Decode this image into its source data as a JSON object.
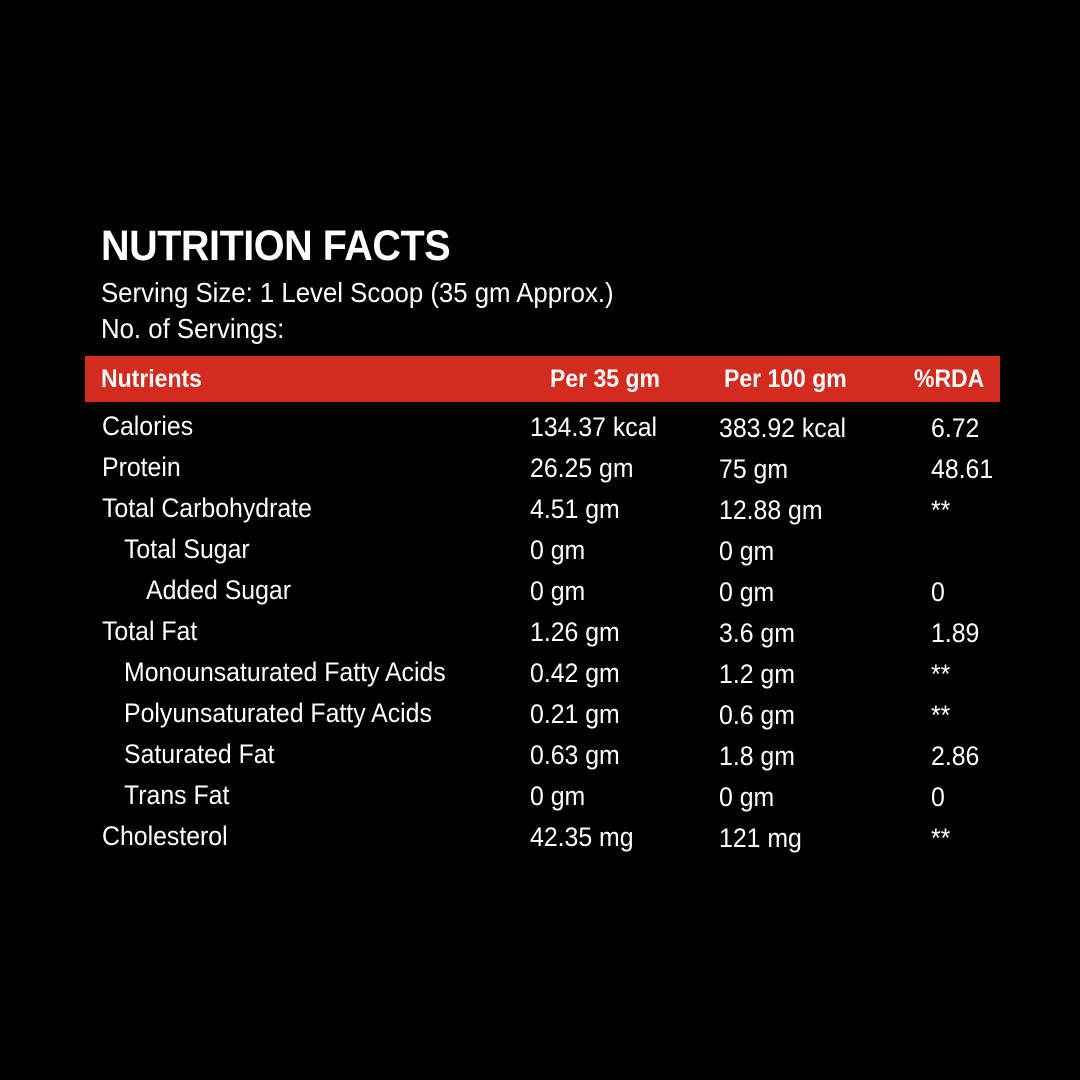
{
  "title": "NUTRITION FACTS",
  "serving_size": "Serving Size: 1 Level Scoop (35 gm Approx.)",
  "servings": "No. of Servings:",
  "colors": {
    "background": "#000000",
    "header_bar": "#d52b1e",
    "text": "#ffffff"
  },
  "table": {
    "headers": [
      "Nutrients",
      "Per 35 gm",
      "Per 100 gm",
      "%RDA"
    ],
    "rows": [
      {
        "name": "Calories",
        "indent": 0,
        "per35": "134.37 kcal",
        "per100": "383.92 kcal",
        "rda": "6.72"
      },
      {
        "name": "Protein",
        "indent": 0,
        "per35": "26.25 gm",
        "per100": "75 gm",
        "rda": "48.61"
      },
      {
        "name": "Total Carbohydrate",
        "indent": 0,
        "per35": "4.51 gm",
        "per100": "12.88 gm",
        "rda": "**"
      },
      {
        "name": "Total Sugar",
        "indent": 1,
        "per35": "0 gm",
        "per100": "0 gm",
        "rda": ""
      },
      {
        "name": "Added Sugar",
        "indent": 2,
        "per35": "0 gm",
        "per100": "0 gm",
        "rda": "0"
      },
      {
        "name": "Total Fat",
        "indent": 0,
        "per35": "1.26 gm",
        "per100": "3.6 gm",
        "rda": "1.89"
      },
      {
        "name": "Monounsaturated Fatty Acids",
        "indent": 1,
        "per35": "0.42 gm",
        "per100": "1.2 gm",
        "rda": "**"
      },
      {
        "name": "Polyunsaturated Fatty Acids",
        "indent": 1,
        "per35": "0.21 gm",
        "per100": "0.6 gm",
        "rda": "**"
      },
      {
        "name": "Saturated Fat",
        "indent": 1,
        "per35": "0.63 gm",
        "per100": "1.8 gm",
        "rda": "2.86"
      },
      {
        "name": "Trans Fat",
        "indent": 1,
        "per35": "0 gm",
        "per100": "0 gm",
        "rda": "0"
      },
      {
        "name": "Cholesterol",
        "indent": 0,
        "per35": "42.35 mg",
        "per100": "121 mg",
        "rda": "**"
      }
    ]
  }
}
